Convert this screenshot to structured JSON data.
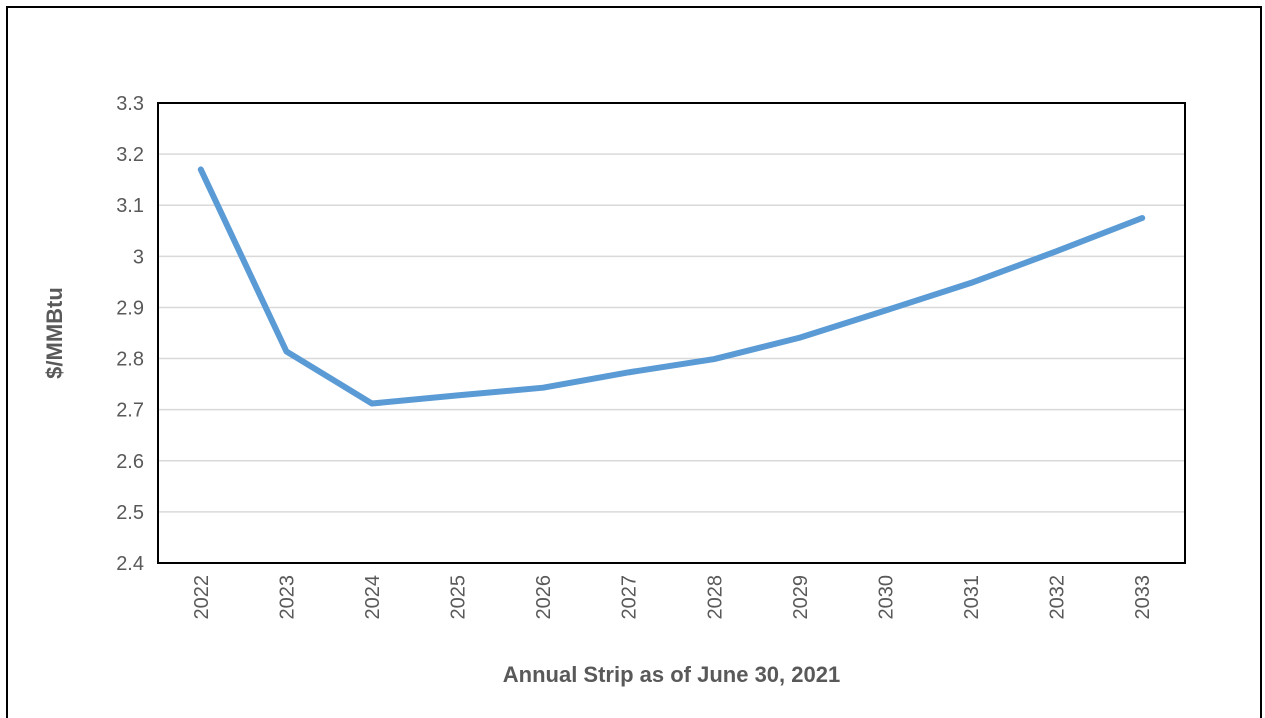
{
  "chart_data": {
    "type": "line",
    "title": "",
    "xlabel": "Annual Strip as of June 30, 2021",
    "ylabel": "$/MMBtu",
    "categories": [
      "2022",
      "2023",
      "2024",
      "2025",
      "2026",
      "2027",
      "2028",
      "2029",
      "2030",
      "2031",
      "2032",
      "2033"
    ],
    "series": [
      {
        "values": [
          3.17,
          2.814,
          2.712,
          2.728,
          2.743,
          2.773,
          2.799,
          2.841,
          2.894,
          2.948,
          3.01,
          3.075
        ]
      }
    ],
    "ylim": [
      2.4,
      3.3
    ],
    "yticks": [
      "2.4",
      "2.5",
      "2.6",
      "2.7",
      "2.8",
      "2.9",
      "3",
      "3.1",
      "3.2",
      "3.3"
    ],
    "grid": true,
    "legend": "none",
    "line_color": "#5B9BD5",
    "grid_color": "#D9D9D9"
  }
}
